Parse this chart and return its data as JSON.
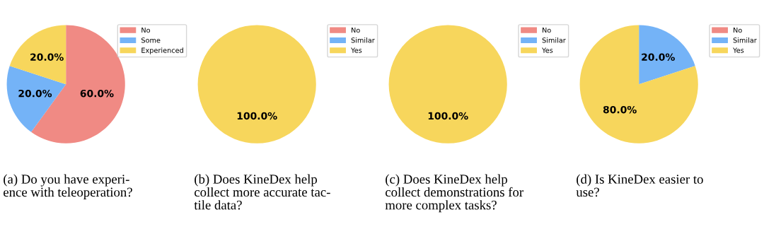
{
  "chart_data": [
    {
      "type": "pie",
      "categories": [
        "No",
        "Some",
        "Experienced"
      ],
      "values": [
        60,
        20,
        20
      ],
      "colors": [
        "#f08a84",
        "#74b3f7",
        "#f7d65c"
      ],
      "value_labels": [
        "60.0%",
        "20.0%",
        "20.0%"
      ],
      "legend": "top right",
      "annotations": [
        "(a) Do you have experi-\nence with teleoperation?"
      ]
    },
    {
      "type": "pie",
      "categories": [
        "No",
        "Similar",
        "Yes"
      ],
      "values": [
        0,
        0,
        100
      ],
      "colors": [
        "#f08a84",
        "#74b3f7",
        "#f7d65c"
      ],
      "value_labels": [
        null,
        null,
        "100.0%"
      ],
      "legend": "top right",
      "annotations": [
        "(b) Does KineDex help\ncollect more accurate tac-\ntile data?"
      ]
    },
    {
      "type": "pie",
      "categories": [
        "No",
        "Similar",
        "Yes"
      ],
      "values": [
        0,
        0,
        100
      ],
      "colors": [
        "#f08a84",
        "#74b3f7",
        "#f7d65c"
      ],
      "value_labels": [
        null,
        null,
        "100.0%"
      ],
      "legend": "top right",
      "annotations": [
        "(c) Does KineDex help\ncollect demonstrations for\nmore complex tasks?"
      ]
    },
    {
      "type": "pie",
      "categories": [
        "No",
        "Similar",
        "Yes"
      ],
      "values": [
        0,
        20,
        80
      ],
      "colors": [
        "#f08a84",
        "#74b3f7",
        "#f7d65c"
      ],
      "value_labels": [
        null,
        "20.0%",
        "80.0%"
      ],
      "legend": "top right",
      "annotations": [
        "(d) Is KineDex easier to\nuse?"
      ]
    }
  ]
}
